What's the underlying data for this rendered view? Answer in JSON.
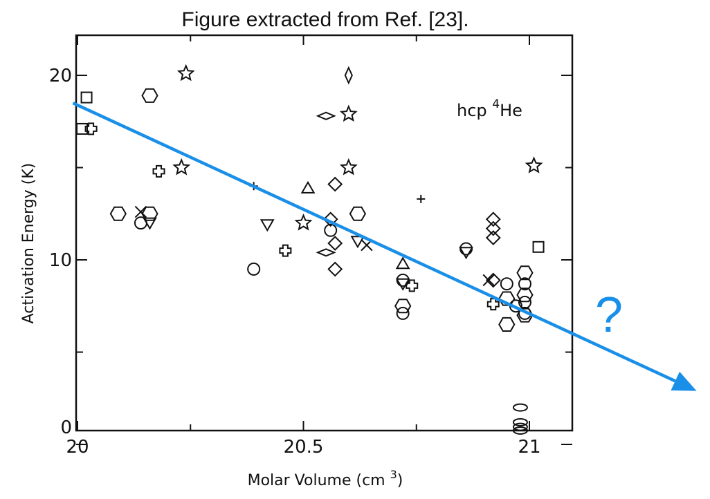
{
  "caption": "Figure extracted from Ref. [23].",
  "chart_data": {
    "type": "scatter",
    "xlabel": "Molar Volume (cm³)",
    "ylabel": "Activation Energy (K)",
    "xlim": [
      20,
      21.07
    ],
    "ylim": [
      0,
      21.4
    ],
    "x_ticks": [
      {
        "value": 20,
        "label": "20"
      },
      {
        "value": 20.5,
        "label": "20.5"
      },
      {
        "value": 21,
        "label": "21"
      }
    ],
    "x_minor_ticks": [
      20.25,
      20.75
    ],
    "y_ticks": [
      {
        "value": 0,
        "label": "0"
      },
      {
        "value": 10,
        "label": "10"
      },
      {
        "value": 20,
        "label": "20"
      }
    ],
    "y_minor_ticks": [
      5,
      15
    ],
    "annotation": {
      "prefix": "hcp ",
      "superscript": "4",
      "element": "He"
    },
    "question_mark": "?",
    "trend_arrow": {
      "from": [
        19.99,
        18.5
      ],
      "to": [
        21.37,
        2.9
      ],
      "color": "#1a8fe8"
    },
    "points": [
      {
        "x": 20.02,
        "y": 18.8,
        "m": "square"
      },
      {
        "x": 20.01,
        "y": 17.1,
        "m": "square"
      },
      {
        "x": 20.03,
        "y": 17.1,
        "m": "plus"
      },
      {
        "x": 20.09,
        "y": 12.5,
        "m": "hexagon"
      },
      {
        "x": 20.14,
        "y": 12.6,
        "m": "x"
      },
      {
        "x": 20.14,
        "y": 12.0,
        "m": "circle"
      },
      {
        "x": 20.16,
        "y": 12.5,
        "m": "hexagon"
      },
      {
        "x": 20.16,
        "y": 12.0,
        "m": "down-triangle"
      },
      {
        "x": 20.16,
        "y": 18.9,
        "m": "hexagon"
      },
      {
        "x": 20.24,
        "y": 20.1,
        "m": "star"
      },
      {
        "x": 20.18,
        "y": 14.8,
        "m": "plus"
      },
      {
        "x": 20.23,
        "y": 15.0,
        "m": "star"
      },
      {
        "x": 20.39,
        "y": 14.0,
        "m": "small-plus"
      },
      {
        "x": 20.39,
        "y": 9.5,
        "m": "circle"
      },
      {
        "x": 20.42,
        "y": 11.9,
        "m": "down-triangle"
      },
      {
        "x": 20.46,
        "y": 10.5,
        "m": "plus"
      },
      {
        "x": 20.5,
        "y": 12.0,
        "m": "star"
      },
      {
        "x": 20.51,
        "y": 13.9,
        "m": "triangle"
      },
      {
        "x": 20.55,
        "y": 17.8,
        "m": "diamond-h"
      },
      {
        "x": 20.56,
        "y": 12.2,
        "m": "diamond"
      },
      {
        "x": 20.56,
        "y": 11.6,
        "m": "circle"
      },
      {
        "x": 20.55,
        "y": 10.4,
        "m": "diamond-h"
      },
      {
        "x": 20.57,
        "y": 10.9,
        "m": "diamond"
      },
      {
        "x": 20.57,
        "y": 9.5,
        "m": "diamond"
      },
      {
        "x": 20.57,
        "y": 14.1,
        "m": "diamond"
      },
      {
        "x": 20.6,
        "y": 20.0,
        "m": "diamond-v"
      },
      {
        "x": 20.6,
        "y": 17.9,
        "m": "star"
      },
      {
        "x": 20.6,
        "y": 15.0,
        "m": "star"
      },
      {
        "x": 20.62,
        "y": 12.5,
        "m": "hexagon"
      },
      {
        "x": 20.62,
        "y": 11.0,
        "m": "down-triangle"
      },
      {
        "x": 20.64,
        "y": 10.8,
        "m": "x"
      },
      {
        "x": 20.72,
        "y": 9.8,
        "m": "triangle"
      },
      {
        "x": 20.72,
        "y": 8.9,
        "m": "circle"
      },
      {
        "x": 20.72,
        "y": 8.7,
        "m": "down-triangle"
      },
      {
        "x": 20.74,
        "y": 8.6,
        "m": "plus"
      },
      {
        "x": 20.72,
        "y": 7.5,
        "m": "hexagon"
      },
      {
        "x": 20.72,
        "y": 7.1,
        "m": "circle"
      },
      {
        "x": 20.76,
        "y": 13.3,
        "m": "small-plus"
      },
      {
        "x": 20.86,
        "y": 10.6,
        "m": "circle"
      },
      {
        "x": 20.86,
        "y": 10.4,
        "m": "down-triangle"
      },
      {
        "x": 20.92,
        "y": 12.2,
        "m": "diamond"
      },
      {
        "x": 20.92,
        "y": 11.7,
        "m": "diamond"
      },
      {
        "x": 20.92,
        "y": 11.2,
        "m": "diamond"
      },
      {
        "x": 20.91,
        "y": 8.9,
        "m": "x"
      },
      {
        "x": 20.92,
        "y": 8.9,
        "m": "diamond"
      },
      {
        "x": 20.92,
        "y": 7.6,
        "m": "plus"
      },
      {
        "x": 20.95,
        "y": 8.7,
        "m": "circle"
      },
      {
        "x": 20.95,
        "y": 7.9,
        "m": "hexagon"
      },
      {
        "x": 20.95,
        "y": 6.5,
        "m": "hexagon"
      },
      {
        "x": 20.97,
        "y": 7.5,
        "m": "circle"
      },
      {
        "x": 20.99,
        "y": 9.3,
        "m": "hexagon"
      },
      {
        "x": 20.99,
        "y": 8.7,
        "m": "circle"
      },
      {
        "x": 20.99,
        "y": 8.1,
        "m": "hexagon"
      },
      {
        "x": 20.99,
        "y": 7.7,
        "m": "circle"
      },
      {
        "x": 20.99,
        "y": 7.1,
        "m": "circle"
      },
      {
        "x": 20.99,
        "y": 7.0,
        "m": "hexagon"
      },
      {
        "x": 21.02,
        "y": 10.7,
        "m": "square"
      },
      {
        "x": 21.01,
        "y": 15.1,
        "m": "star"
      },
      {
        "x": 20.98,
        "y": 2.0,
        "m": "ellipse"
      },
      {
        "x": 20.98,
        "y": 1.2,
        "m": "ellipse"
      },
      {
        "x": 20.98,
        "y": 0.95,
        "m": "ellipse"
      },
      {
        "x": 20.98,
        "y": 0.75,
        "m": "ellipse"
      }
    ]
  }
}
